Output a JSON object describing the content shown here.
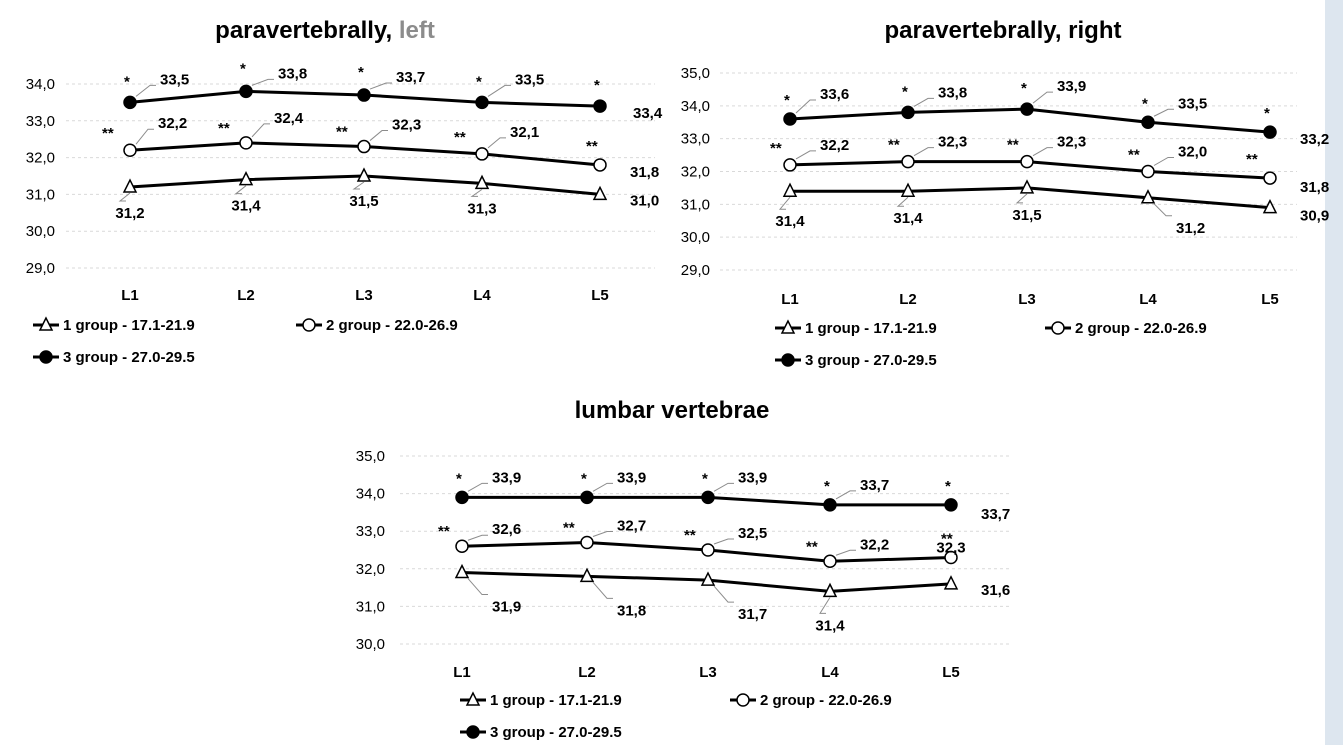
{
  "chart_data": [
    {
      "type": "line",
      "title": "paravertebrally, left",
      "title_main": "paravertebrally,",
      "title_grey": "left",
      "categories": [
        "L1",
        "L2",
        "L3",
        "L4",
        "L5"
      ],
      "ylim": [
        29.0,
        34.0
      ],
      "yticks": [
        "29,0",
        "30,0",
        "31,0",
        "32,0",
        "33,0",
        "34,0"
      ],
      "grid": true,
      "legend_position": "bottom",
      "series": [
        {
          "name": "1 group - 17.1-21.9",
          "marker": "triangle",
          "values": [
            31.2,
            31.4,
            31.5,
            31.3,
            31.0
          ],
          "labels": [
            "31,2",
            "31,4",
            "31,5",
            "31,3",
            "31,0"
          ],
          "stars": [
            "",
            "",
            "",
            "",
            ""
          ]
        },
        {
          "name": "2 group - 22.0-26.9",
          "marker": "circle-open",
          "values": [
            32.2,
            32.4,
            32.3,
            32.1,
            31.8
          ],
          "labels": [
            "32,2",
            "32,4",
            "32,3",
            "32,1",
            "31,8"
          ],
          "stars": [
            "**",
            "**",
            "**",
            "**",
            "**"
          ]
        },
        {
          "name": "3 group - 27.0-29.5",
          "marker": "circle-filled",
          "values": [
            33.5,
            33.8,
            33.7,
            33.5,
            33.4
          ],
          "labels": [
            "33,5",
            "33,8",
            "33,7",
            "33,5",
            "33,4"
          ],
          "stars": [
            "*",
            "*",
            "*",
            "*",
            "*"
          ]
        }
      ]
    },
    {
      "type": "line",
      "title": "paravertebrally, right",
      "categories": [
        "L1",
        "L2",
        "L3",
        "L4",
        "L5"
      ],
      "ylim": [
        29.0,
        35.0
      ],
      "yticks": [
        "29,0",
        "30,0",
        "31,0",
        "32,0",
        "33,0",
        "34,0",
        "35,0"
      ],
      "grid": true,
      "legend_position": "bottom",
      "series": [
        {
          "name": "1 group - 17.1-21.9",
          "marker": "triangle",
          "values": [
            31.4,
            31.4,
            31.5,
            31.2,
            30.9
          ],
          "labels": [
            "31,4",
            "31,4",
            "31,5",
            "31,2",
            "30,9"
          ],
          "stars": [
            "",
            "",
            "",
            "",
            ""
          ]
        },
        {
          "name": "2 group - 22.0-26.9",
          "marker": "circle-open",
          "values": [
            32.2,
            32.3,
            32.3,
            32.0,
            31.8
          ],
          "labels": [
            "32,2",
            "32,3",
            "32,3",
            "32,0",
            "31,8"
          ],
          "stars": [
            "**",
            "**",
            "**",
            "**",
            "**"
          ]
        },
        {
          "name": "3 group - 27.0-29.5",
          "marker": "circle-filled",
          "values": [
            33.6,
            33.8,
            33.9,
            33.5,
            33.2
          ],
          "labels": [
            "33,6",
            "33,8",
            "33,9",
            "33,5",
            "33,2"
          ],
          "stars": [
            "*",
            "*",
            "*",
            "*",
            "*"
          ]
        }
      ]
    },
    {
      "type": "line",
      "title": "lumbar vertebrae",
      "categories": [
        "L1",
        "L2",
        "L3",
        "L4",
        "L5"
      ],
      "ylim": [
        30.0,
        35.0
      ],
      "yticks": [
        "30,0",
        "31,0",
        "32,0",
        "33,0",
        "34,0",
        "35,0"
      ],
      "grid": true,
      "legend_position": "bottom",
      "series": [
        {
          "name": "1 group - 17.1-21.9",
          "marker": "triangle",
          "values": [
            31.9,
            31.8,
            31.7,
            31.4,
            31.6
          ],
          "labels": [
            "31,9",
            "31,8",
            "31,7",
            "31,4",
            "31,6"
          ],
          "stars": [
            "",
            "",
            "",
            "",
            ""
          ]
        },
        {
          "name": "2 group - 22.0-26.9",
          "marker": "circle-open",
          "values": [
            32.6,
            32.7,
            32.5,
            32.2,
            32.3
          ],
          "labels": [
            "32,6",
            "32,7",
            "32,5",
            "32,2",
            "32,3"
          ],
          "stars": [
            "**",
            "**",
            "**",
            "**",
            "**"
          ]
        },
        {
          "name": "3 group - 27.0-29.5",
          "marker": "circle-filled",
          "values": [
            33.9,
            33.9,
            33.9,
            33.7,
            33.7
          ],
          "labels": [
            "33,9",
            "33,9",
            "33,9",
            "33,7",
            "33,7"
          ],
          "stars": [
            "*",
            "*",
            "*",
            "*",
            "*"
          ]
        }
      ]
    }
  ],
  "colors": {
    "line": "#000000",
    "grid": "#d9d9d9",
    "title_grey": "#8c8c8c",
    "side_strip": "#dde6ef"
  }
}
